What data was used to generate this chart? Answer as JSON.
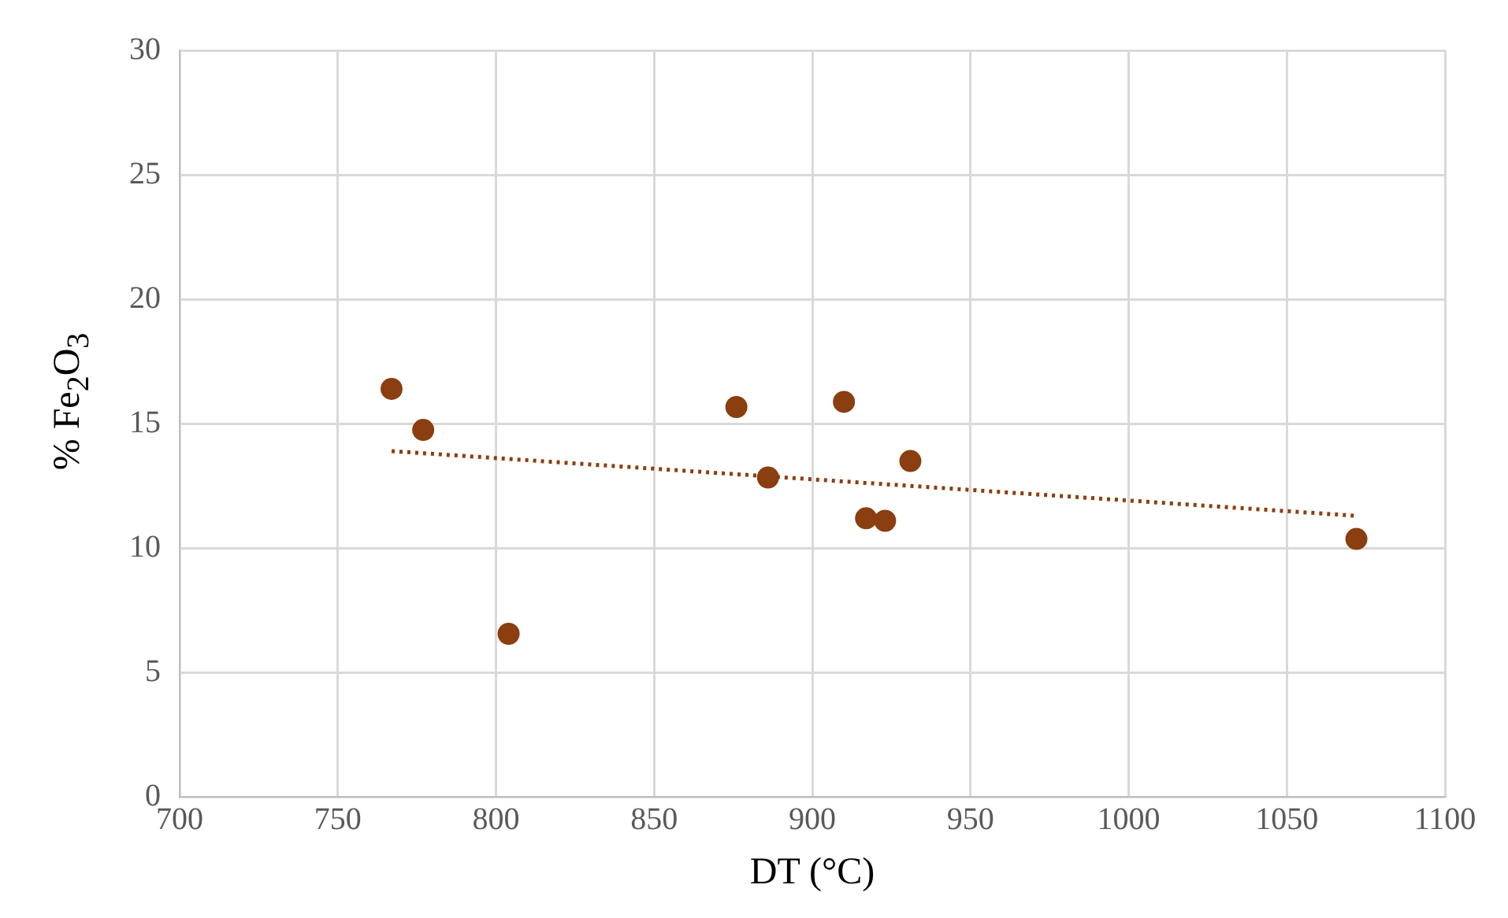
{
  "chart_data": {
    "type": "scatter",
    "xlabel": "DT (°C)",
    "ylabel": "% Fe$_{2}$O$_{3}$",
    "x": [
      767,
      777,
      804,
      876,
      886,
      910,
      917,
      923,
      931,
      1072
    ],
    "series": [
      {
        "color": "#8b3e0f",
        "marker": "circle",
        "values": [
          16.4,
          14.75,
          6.56,
          15.67,
          12.84,
          15.88,
          11.2,
          11.1,
          13.5,
          10.37
        ]
      },
      {
        "type": "line",
        "color": "#8b3e0f",
        "line_style": "dotted",
        "marker": "none",
        "x": [
          767,
          1072
        ],
        "values": [
          13.9,
          11.3
        ]
      }
    ],
    "xlim": [
      700,
      1100
    ],
    "xticks": [
      700,
      750,
      800,
      850,
      900,
      950,
      1000,
      1050,
      1100
    ],
    "ylim": [
      0,
      30
    ],
    "yticks": [
      0,
      5,
      10,
      15,
      20,
      25,
      30
    ],
    "grid": true,
    "legend": false
  }
}
